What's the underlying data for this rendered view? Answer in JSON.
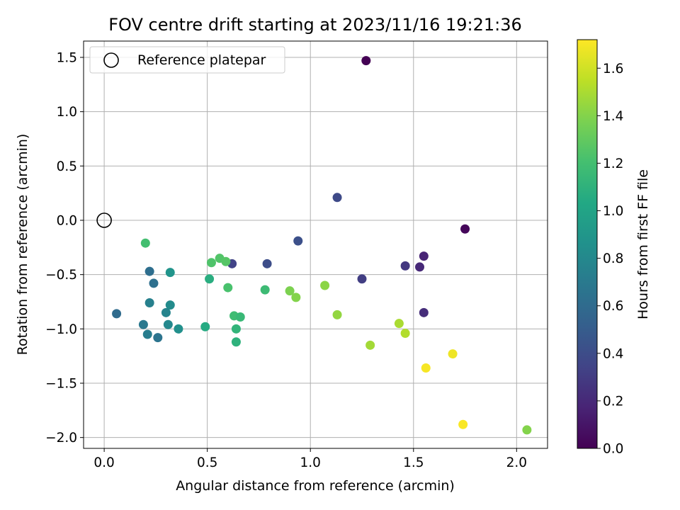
{
  "chart_data": {
    "type": "scatter",
    "title": "FOV centre drift starting at 2023/11/16 19:21:36",
    "xlabel": "Angular distance from reference (arcmin)",
    "ylabel": "Rotation from reference (arcmin)",
    "xlim": [
      -0.1,
      2.15
    ],
    "ylim": [
      -2.1,
      1.65
    ],
    "xticks": [
      0.0,
      0.5,
      1.0,
      1.5,
      2.0
    ],
    "xtick_labels": [
      "0.0",
      "0.5",
      "1.0",
      "1.5",
      "2.0"
    ],
    "yticks": [
      1.5,
      1.0,
      0.5,
      0.0,
      -0.5,
      -1.0,
      -1.5,
      -2.0
    ],
    "ytick_labels": [
      "1.5",
      "1.0",
      "0.5",
      "0.0",
      "−0.5",
      "−1.0",
      "−1.5",
      "−2.0"
    ],
    "grid": true,
    "legend": {
      "position": "top-left",
      "entries": [
        "Reference platepar"
      ]
    },
    "colormap": "viridis",
    "colorbar": {
      "label": "Hours from first FF file",
      "range": [
        0.0,
        1.72
      ],
      "ticks": [
        0.0,
        0.2,
        0.4,
        0.6,
        0.8,
        1.0,
        1.2,
        1.4,
        1.6
      ],
      "tick_labels": [
        "0.0",
        "0.2",
        "0.4",
        "0.6",
        "0.8",
        "1.0",
        "1.2",
        "1.4",
        "1.6"
      ]
    },
    "reference_point": {
      "x": 0.0,
      "y": 0.0,
      "name": "Reference platepar"
    },
    "points": [
      {
        "x": 1.27,
        "y": 1.47,
        "c": 0.0
      },
      {
        "x": 1.75,
        "y": -0.08,
        "c": 0.03
      },
      {
        "x": 1.55,
        "y": -0.33,
        "c": 0.17
      },
      {
        "x": 1.53,
        "y": -0.43,
        "c": 0.2
      },
      {
        "x": 1.55,
        "y": -0.85,
        "c": 0.22
      },
      {
        "x": 1.46,
        "y": -0.42,
        "c": 0.28
      },
      {
        "x": 1.25,
        "y": -0.54,
        "c": 0.31
      },
      {
        "x": 0.62,
        "y": -0.4,
        "c": 0.34
      },
      {
        "x": 1.13,
        "y": 0.21,
        "c": 0.38
      },
      {
        "x": 0.79,
        "y": -0.4,
        "c": 0.4
      },
      {
        "x": 0.94,
        "y": -0.19,
        "c": 0.42
      },
      {
        "x": 0.06,
        "y": -0.86,
        "c": 0.6
      },
      {
        "x": 0.22,
        "y": -0.47,
        "c": 0.62
      },
      {
        "x": 0.24,
        "y": -0.58,
        "c": 0.63
      },
      {
        "x": 0.26,
        "y": -1.08,
        "c": 0.66
      },
      {
        "x": 0.19,
        "y": -0.96,
        "c": 0.69
      },
      {
        "x": 0.21,
        "y": -1.05,
        "c": 0.72
      },
      {
        "x": 0.22,
        "y": -0.76,
        "c": 0.74
      },
      {
        "x": 0.3,
        "y": -0.85,
        "c": 0.77
      },
      {
        "x": 0.31,
        "y": -0.96,
        "c": 0.8
      },
      {
        "x": 0.32,
        "y": -0.78,
        "c": 0.82
      },
      {
        "x": 0.36,
        "y": -1.0,
        "c": 0.85
      },
      {
        "x": 0.32,
        "y": -0.48,
        "c": 0.88
      },
      {
        "x": 0.2,
        "y": -0.21,
        "c": 1.2
      },
      {
        "x": 0.49,
        "y": -0.98,
        "c": 1.05
      },
      {
        "x": 0.51,
        "y": -0.54,
        "c": 1.07
      },
      {
        "x": 0.52,
        "y": -0.39,
        "c": 1.24
      },
      {
        "x": 0.56,
        "y": -0.35,
        "c": 1.25
      },
      {
        "x": 0.59,
        "y": -0.38,
        "c": 1.26
      },
      {
        "x": 0.6,
        "y": -0.62,
        "c": 1.22
      },
      {
        "x": 0.63,
        "y": -0.88,
        "c": 1.18
      },
      {
        "x": 0.64,
        "y": -1.0,
        "c": 1.12
      },
      {
        "x": 0.64,
        "y": -1.12,
        "c": 1.1
      },
      {
        "x": 0.66,
        "y": -0.89,
        "c": 1.15
      },
      {
        "x": 0.78,
        "y": -0.64,
        "c": 1.17
      },
      {
        "x": 0.9,
        "y": -0.65,
        "c": 1.38
      },
      {
        "x": 0.93,
        "y": -0.71,
        "c": 1.4
      },
      {
        "x": 1.07,
        "y": -0.6,
        "c": 1.42
      },
      {
        "x": 1.13,
        "y": -0.87,
        "c": 1.44
      },
      {
        "x": 1.29,
        "y": -1.15,
        "c": 1.48
      },
      {
        "x": 1.43,
        "y": -0.95,
        "c": 1.5
      },
      {
        "x": 1.46,
        "y": -1.04,
        "c": 1.52
      },
      {
        "x": 2.05,
        "y": -1.93,
        "c": 1.4
      },
      {
        "x": 1.56,
        "y": -1.36,
        "c": 1.7
      },
      {
        "x": 1.69,
        "y": -1.23,
        "c": 1.68
      },
      {
        "x": 1.74,
        "y": -1.88,
        "c": 1.71
      }
    ]
  }
}
